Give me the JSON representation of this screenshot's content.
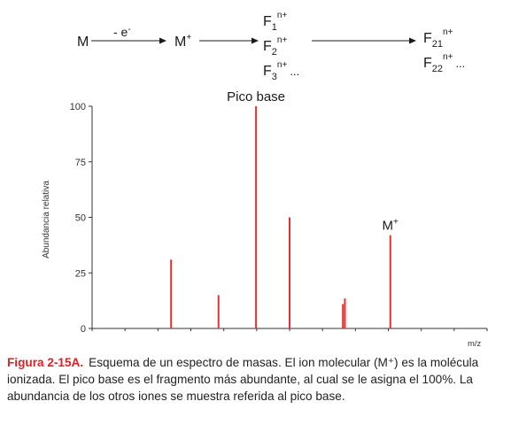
{
  "scheme": {
    "m": "M",
    "arrow_label": "- e",
    "arrow_label_sup": "-",
    "m_plus": "M",
    "m_plus_sup": "+",
    "f1": "F",
    "f1_sub": "1",
    "f1_sup": "n+",
    "f2": "F",
    "f2_sub": "2",
    "f2_sup": "n+",
    "f3": "F",
    "f3_sub": "3",
    "f3_sup": "n+",
    "f3_tail": "...",
    "f21": "F",
    "f21_sub": "21",
    "f21_sup": "n+",
    "f22": "F",
    "f22_sub": "22",
    "f22_sup": "n+",
    "f22_tail": "..."
  },
  "chart_data": {
    "type": "bar",
    "title": "",
    "xlabel": "m/z",
    "ylabel": "Abundancia relativa",
    "ylim": [
      0,
      100
    ],
    "yticks": [
      0,
      25,
      50,
      75,
      100
    ],
    "grid": false,
    "bar_color": "#e8312f",
    "peaks": [
      {
        "position": 20,
        "value": 31
      },
      {
        "position": 32,
        "value": 15
      },
      {
        "position": 41.5,
        "value": 100
      },
      {
        "position": 50,
        "value": 50
      },
      {
        "position": 63.5,
        "value": 11
      },
      {
        "position": 64,
        "value": 13.5
      },
      {
        "position": 75.5,
        "value": 42
      }
    ],
    "annotations": [
      {
        "text": "Pico base",
        "peak_index": 2
      },
      {
        "text": "M",
        "sup": "+",
        "peak_index": 6
      }
    ]
  },
  "caption": {
    "figure_label": "Figura 2-15A.",
    "text": "Esquema de un espectro de masas. El ion molecular (M⁺) es la molécula ionizada. El pico base es el fragmento más abundante, al cual se le asigna el 100%. La abundancia de los otros iones se muestra referida al pico base."
  },
  "colors": {
    "accent": "#d8232a",
    "peak": "#e8312f",
    "text": "#1a1a1a"
  }
}
